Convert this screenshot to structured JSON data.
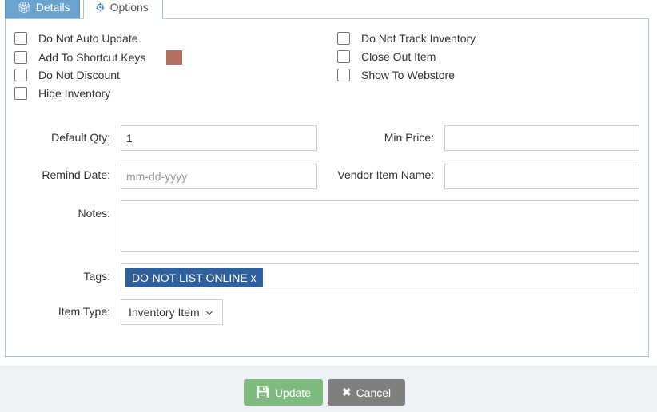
{
  "tabs": [
    {
      "label": "Details",
      "icon": "gift-icon"
    },
    {
      "label": "Options",
      "icon": "cogs-icon",
      "active": true
    }
  ],
  "checkboxes_left": [
    {
      "label": "Do Not Auto Update",
      "checked": false
    },
    {
      "label": "Add To Shortcut Keys",
      "checked": false,
      "swatch": "#b07060"
    },
    {
      "label": "Do Not Discount",
      "checked": false
    },
    {
      "label": "Hide Inventory",
      "checked": false
    }
  ],
  "checkboxes_right": [
    {
      "label": "Do Not Track Inventory",
      "checked": false
    },
    {
      "label": "Close Out Item",
      "checked": false
    },
    {
      "label": "Show To Webstore",
      "checked": false
    }
  ],
  "form": {
    "default_qty": {
      "label": "Default Qty:",
      "value": "1"
    },
    "min_price": {
      "label": "Min Price:",
      "value": ""
    },
    "remind_date": {
      "label": "Remind Date:",
      "placeholder": "mm-dd-yyyy"
    },
    "vendor_item_name": {
      "label": "Vendor Item Name:",
      "value": ""
    },
    "notes": {
      "label": "Notes:",
      "value": ""
    },
    "tags": {
      "label": "Tags:",
      "items": [
        "DO-NOT-LIST-ONLINE"
      ],
      "remove": "x"
    },
    "item_type": {
      "label": "Item Type:",
      "value": "Inventory Item"
    }
  },
  "buttons": {
    "update": "Update",
    "cancel": "Cancel"
  },
  "colors": {
    "update": "#7fba7f",
    "cancel": "#7f7f7f",
    "tag": "#2e5f9e",
    "tab_inactive": "#6aa3cf"
  }
}
